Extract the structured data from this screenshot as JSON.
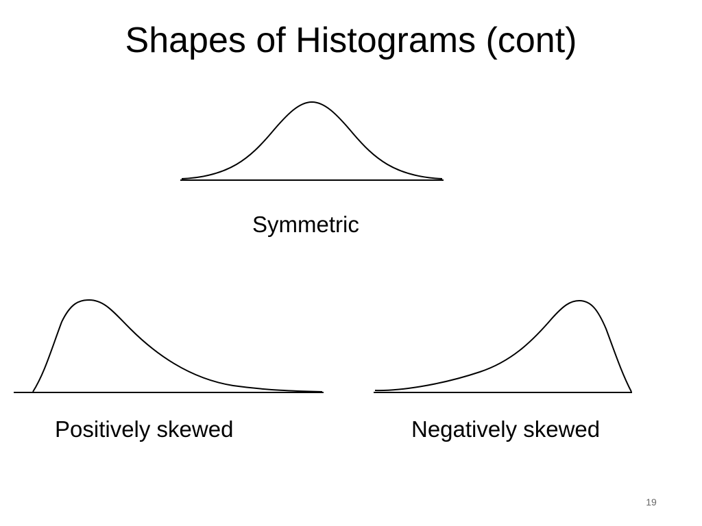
{
  "slide": {
    "title": "Shapes of Histograms (cont)",
    "page_number": "19",
    "colors": {
      "background": "#ffffff",
      "text": "#000000",
      "curve": "#000000",
      "page_number": "#666666"
    }
  },
  "shapes": [
    {
      "label": "Symmetric"
    },
    {
      "label": "Positively skewed"
    },
    {
      "label": "Negatively skewed"
    }
  ]
}
